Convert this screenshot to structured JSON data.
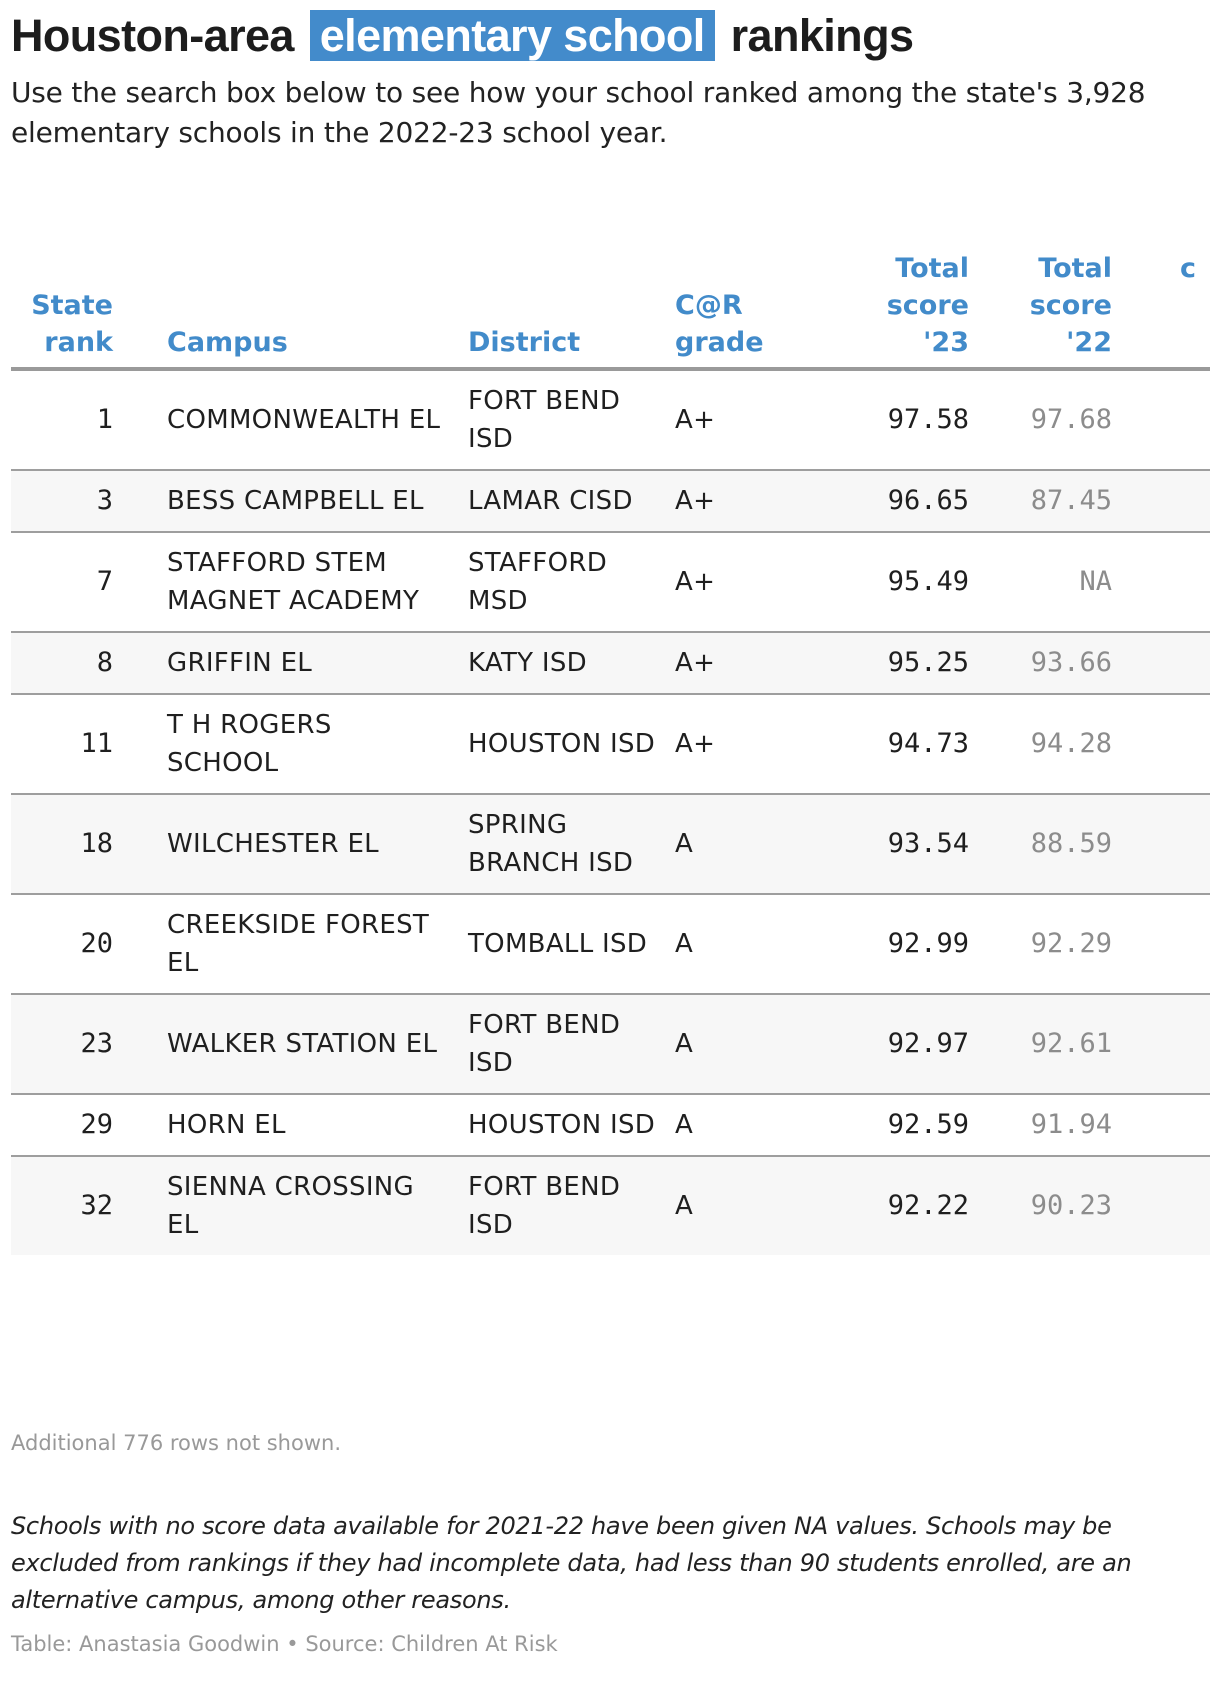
{
  "header": {
    "title_before": "Houston-area",
    "title_highlight": "elementary school",
    "title_after": "rankings",
    "highlight_color": "#438bcb",
    "subtitle": "Use the search box below to see how your school ranked among the state's 3,928 elementary schools in the 2022-23 school year."
  },
  "table": {
    "columns": [
      {
        "key": "rank",
        "label": "State rank",
        "align": "right"
      },
      {
        "key": "campus",
        "label": "Campus",
        "align": "left"
      },
      {
        "key": "district",
        "label": "District",
        "align": "left"
      },
      {
        "key": "grade",
        "label": "C@R grade",
        "align": "left"
      },
      {
        "key": "score_23",
        "label": "Total score '23",
        "align": "right"
      },
      {
        "key": "score_22",
        "label": "Total score '22",
        "align": "right"
      },
      {
        "key": "extra",
        "label": "c",
        "align": "right"
      }
    ],
    "header_color": "#428bca",
    "rows": [
      {
        "rank": "1",
        "campus": "COMMONWEALTH EL",
        "district": "FORT BEND ISD",
        "grade": "A+",
        "score_23": "97.58",
        "score_22": "97.68"
      },
      {
        "rank": "3",
        "campus": "BESS CAMPBELL EL",
        "district": "LAMAR CISD",
        "grade": "A+",
        "score_23": "96.65",
        "score_22": "87.45"
      },
      {
        "rank": "7",
        "campus": "STAFFORD STEM MAGNET ACADEMY",
        "district": "STAFFORD MSD",
        "grade": "A+",
        "score_23": "95.49",
        "score_22": "NA"
      },
      {
        "rank": "8",
        "campus": "GRIFFIN EL",
        "district": "KATY ISD",
        "grade": "A+",
        "score_23": "95.25",
        "score_22": "93.66"
      },
      {
        "rank": "11",
        "campus": "T H ROGERS SCHOOL",
        "district": "HOUSTON ISD",
        "grade": "A+",
        "score_23": "94.73",
        "score_22": "94.28"
      },
      {
        "rank": "18",
        "campus": "WILCHESTER EL",
        "district": "SPRING BRANCH ISD",
        "grade": "A",
        "score_23": "93.54",
        "score_22": "88.59"
      },
      {
        "rank": "20",
        "campus": "CREEKSIDE FOREST EL",
        "district": "TOMBALL ISD",
        "grade": "A",
        "score_23": "92.99",
        "score_22": "92.29"
      },
      {
        "rank": "23",
        "campus": "WALKER STATION EL",
        "district": "FORT BEND ISD",
        "grade": "A",
        "score_23": "92.97",
        "score_22": "92.61"
      },
      {
        "rank": "29",
        "campus": "HORN EL",
        "district": "HOUSTON ISD",
        "grade": "A",
        "score_23": "92.59",
        "score_22": "91.94"
      },
      {
        "rank": "32",
        "campus": "SIENNA CROSSING EL",
        "district": "FORT BEND ISD",
        "grade": "A",
        "score_23": "92.22",
        "score_22": "90.23"
      }
    ]
  },
  "footer": {
    "more_rows": "Additional 776 rows not shown.",
    "note": "Schools with no score data available for 2021-22 have been given NA values. Schools may be excluded from rankings if they had incomplete data, had less than 90 students enrolled, are an alternative campus, among other reasons.",
    "credit": "Table: Anastasia Goodwin • Source: Children At Risk"
  }
}
